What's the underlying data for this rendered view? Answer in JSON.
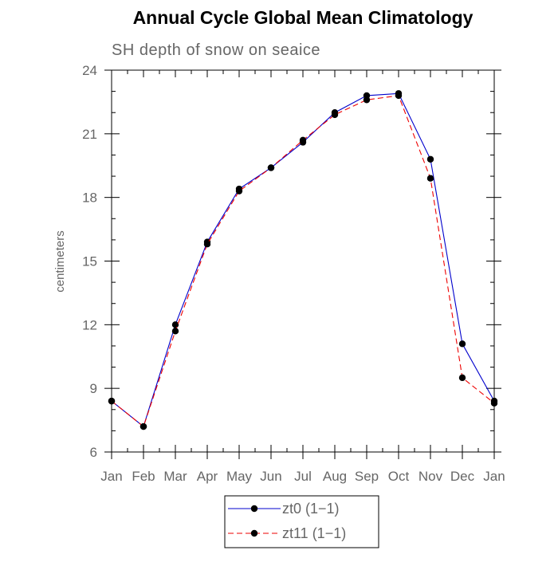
{
  "chart_data": {
    "type": "line",
    "title": "Annual Cycle Global Mean Climatology",
    "subtitle": "SH depth of snow on seaice",
    "ylabel": "centimeters",
    "xlabel": "",
    "categories": [
      "Jan",
      "Feb",
      "Mar",
      "Apr",
      "May",
      "Jun",
      "Jul",
      "Aug",
      "Sep",
      "Oct",
      "Nov",
      "Dec",
      "Jan"
    ],
    "ylim": [
      6,
      24
    ],
    "yticks": [
      6,
      9,
      12,
      15,
      18,
      21,
      24
    ],
    "ytick_labels": [
      "6",
      "9",
      "12",
      "15",
      "18",
      "21",
      "24"
    ],
    "series": [
      {
        "name": "zt0 (1−1)",
        "color": "#0000cc",
        "dash": "solid",
        "values": [
          8.4,
          7.2,
          12.0,
          15.9,
          18.4,
          19.4,
          20.6,
          22.0,
          22.8,
          22.9,
          19.8,
          11.1,
          8.4
        ]
      },
      {
        "name": "zt11 (1−1)",
        "color": "#ee0000",
        "dash": "dashed",
        "values": [
          8.4,
          7.2,
          11.7,
          15.8,
          18.3,
          19.4,
          20.7,
          21.9,
          22.6,
          22.8,
          18.9,
          9.5,
          8.3
        ]
      }
    ],
    "grid": false,
    "legend_position": "bottom"
  }
}
